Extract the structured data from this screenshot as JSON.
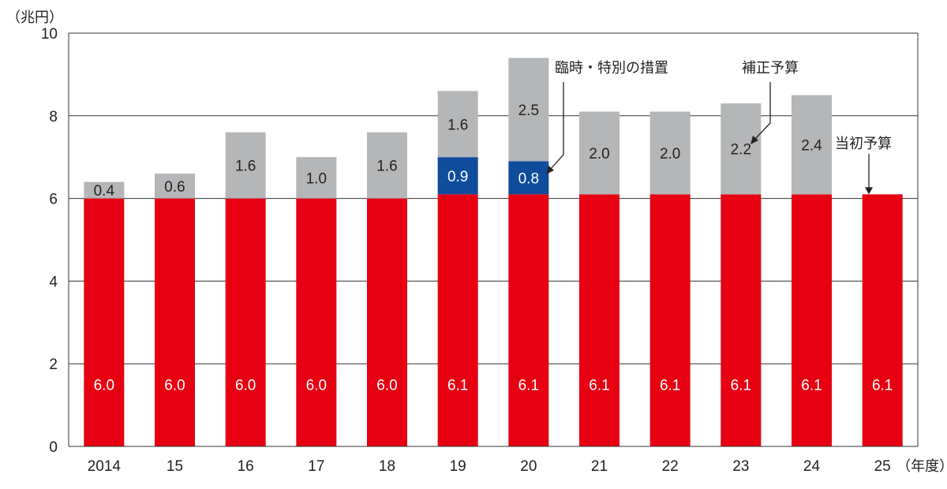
{
  "chart_data": {
    "type": "bar",
    "stacked": true,
    "categories": [
      "2014",
      "15",
      "16",
      "17",
      "18",
      "19",
      "20",
      "21",
      "22",
      "23",
      "24",
      "25"
    ],
    "ylim": [
      0,
      10
    ],
    "yticks": [
      "0",
      "2",
      "4",
      "6",
      "8",
      "10"
    ],
    "y_unit_label": "（兆円）",
    "x_unit_label": "（年度）",
    "grid": true,
    "series": [
      {
        "key": "initial",
        "color": "#e60012",
        "values": [
          6.0,
          6.0,
          6.0,
          6.0,
          6.0,
          6.1,
          6.1,
          6.1,
          6.1,
          6.1,
          6.1,
          6.1
        ],
        "labels": [
          "6.0",
          "6.0",
          "6.0",
          "6.0",
          "6.0",
          "6.1",
          "6.1",
          "6.1",
          "6.1",
          "6.1",
          "6.1",
          "6.1"
        ]
      },
      {
        "key": "special",
        "color": "#0f4c9c",
        "values": [
          0,
          0,
          0,
          0,
          0,
          0.9,
          0.8,
          0,
          0,
          0,
          0,
          0
        ],
        "labels": [
          "",
          "",
          "",
          "",
          "",
          "0.9",
          "0.8",
          "",
          "",
          "",
          "",
          ""
        ]
      },
      {
        "key": "supplementary",
        "color": "#b4b6b8",
        "values": [
          0.4,
          0.6,
          1.6,
          1.0,
          1.6,
          1.6,
          2.5,
          2.0,
          2.0,
          2.2,
          2.4,
          0
        ],
        "labels": [
          "0.4",
          "0.6",
          "1.6",
          "1.0",
          "1.6",
          "1.6",
          "2.5",
          "2.0",
          "2.0",
          "2.2",
          "2.4",
          ""
        ]
      }
    ],
    "annotations": [
      {
        "text": "臨時・特別の措置",
        "points_to": "special"
      },
      {
        "text": "補正予算",
        "points_to": "supplementary"
      },
      {
        "text": "当初予算",
        "points_to": "initial"
      }
    ]
  }
}
